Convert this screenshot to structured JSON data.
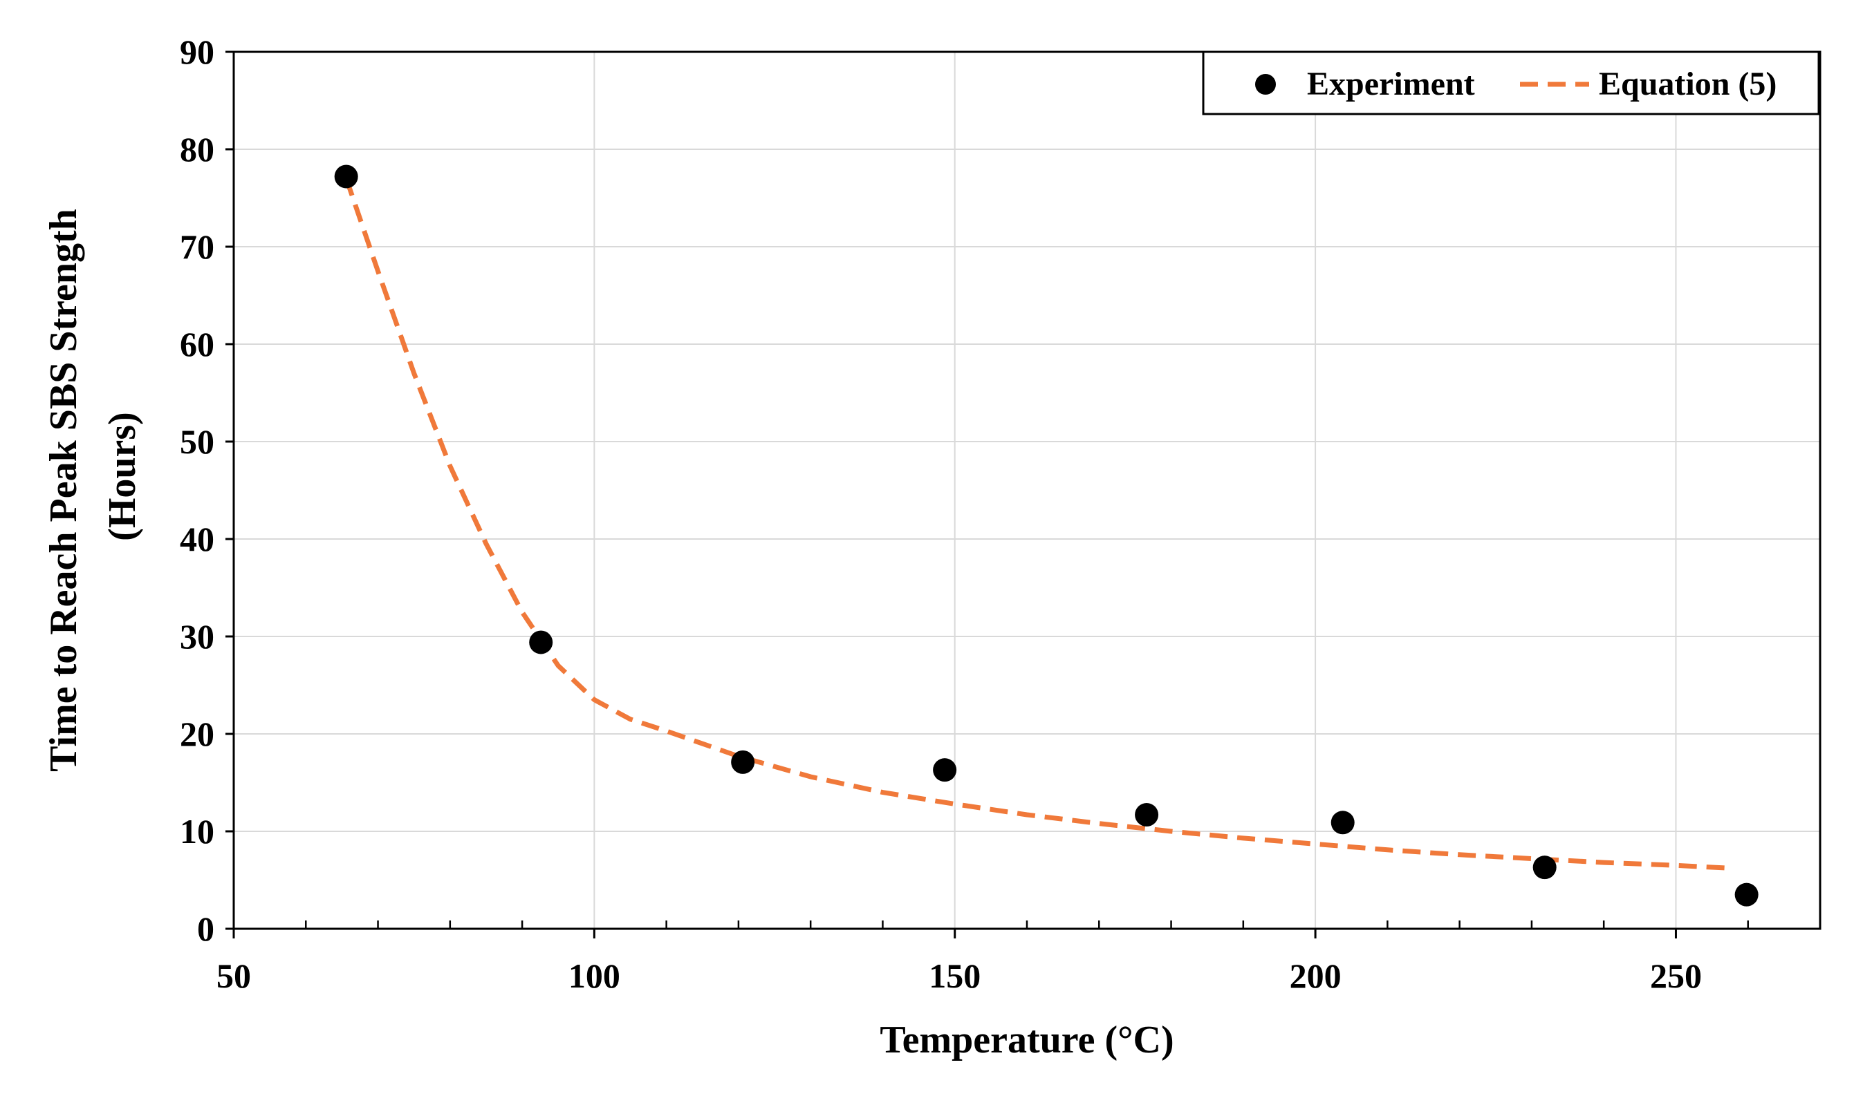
{
  "chart_data": {
    "type": "scatter",
    "title": "",
    "xlabel": "Temperature  (°C)",
    "ylabel_line1": "Time to Reach Peak SBS Strength",
    "ylabel_line2": "(Hours)",
    "xlim": [
      50,
      270
    ],
    "ylim": [
      0,
      90
    ],
    "xticks": [
      50,
      100,
      150,
      200,
      250
    ],
    "xtick_labels": [
      "50",
      "100",
      "150",
      "200",
      "250"
    ],
    "yticks": [
      0,
      10,
      20,
      30,
      40,
      50,
      60,
      70,
      80,
      90
    ],
    "ytick_labels": [
      "0",
      "10",
      "20",
      "30",
      "40",
      "50",
      "60",
      "70",
      "80",
      "90"
    ],
    "x_minor_step": 10,
    "grid": true,
    "legend_position": "top-right",
    "series": [
      {
        "name": "Experiment",
        "kind": "scatter",
        "color": "#000000",
        "points": [
          {
            "x": 65.6,
            "y": 77.2
          },
          {
            "x": 92.6,
            "y": 29.4
          },
          {
            "x": 120.6,
            "y": 17.1
          },
          {
            "x": 148.6,
            "y": 16.3
          },
          {
            "x": 176.6,
            "y": 11.7
          },
          {
            "x": 203.8,
            "y": 10.9
          },
          {
            "x": 231.8,
            "y": 6.3
          },
          {
            "x": 259.8,
            "y": 3.5
          }
        ]
      },
      {
        "name": "Equation (5)",
        "kind": "line",
        "style": "dashed",
        "color": "#F0793A",
        "points": [
          {
            "x": 65.6,
            "y": 77.0
          },
          {
            "x": 70,
            "y": 67.5
          },
          {
            "x": 75,
            "y": 57.0
          },
          {
            "x": 80,
            "y": 47.5
          },
          {
            "x": 85,
            "y": 39.5
          },
          {
            "x": 90,
            "y": 32.5
          },
          {
            "x": 95,
            "y": 27.0
          },
          {
            "x": 100,
            "y": 23.5
          },
          {
            "x": 105,
            "y": 21.5
          },
          {
            "x": 110,
            "y": 20.3
          },
          {
            "x": 120,
            "y": 17.7
          },
          {
            "x": 130,
            "y": 15.6
          },
          {
            "x": 140,
            "y": 14.0
          },
          {
            "x": 150,
            "y": 12.8
          },
          {
            "x": 160,
            "y": 11.7
          },
          {
            "x": 170,
            "y": 10.8
          },
          {
            "x": 180,
            "y": 10.0
          },
          {
            "x": 190,
            "y": 9.3
          },
          {
            "x": 200,
            "y": 8.7
          },
          {
            "x": 210,
            "y": 8.1
          },
          {
            "x": 220,
            "y": 7.6
          },
          {
            "x": 230,
            "y": 7.2
          },
          {
            "x": 240,
            "y": 6.8
          },
          {
            "x": 250,
            "y": 6.5
          },
          {
            "x": 258,
            "y": 6.2
          }
        ]
      }
    ]
  }
}
